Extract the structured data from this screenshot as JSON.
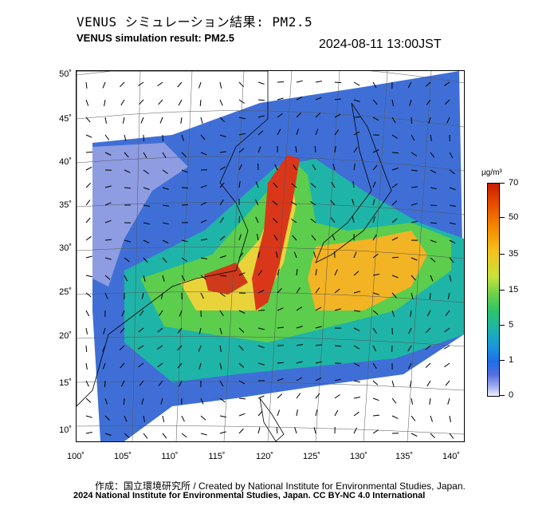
{
  "header": {
    "title_jp": "VENUS シミュレーション結果: PM2.5",
    "title_en": "VENUS simulation result: PM2.5",
    "timestamp": "2024-08-11 13:00JST"
  },
  "map": {
    "lat_labels": [
      "50˚",
      "45˚",
      "40˚",
      "35˚",
      "30˚",
      "25˚",
      "20˚",
      "15˚",
      "10˚"
    ],
    "lon_labels": [
      "100˚",
      "105˚",
      "110˚",
      "115˚",
      "120˚",
      "125˚",
      "130˚",
      "135˚",
      "140˚"
    ],
    "lat_values": [
      50,
      45,
      40,
      35,
      30,
      25,
      20,
      15,
      10
    ],
    "lon_values": [
      100,
      105,
      110,
      115,
      120,
      125,
      130,
      135,
      140
    ],
    "land_color": "#ffffff",
    "background_color": "#4169c8"
  },
  "colorbar": {
    "unit": "µg/m³",
    "labels": [
      "70",
      "50",
      "35",
      "15",
      "5",
      "1",
      "0"
    ],
    "colors": [
      "#c81e00",
      "#f59000",
      "#f4c21e",
      "#6fd14a",
      "#1fb4a8",
      "#1e6ee6",
      "#f2f2ff"
    ]
  },
  "footer": {
    "credit": "作成：国立環境研究所 / Created by National Institute for Environmental Studies, Japan.",
    "copyright": "2024 National Institute for Environmental Studies, Japan. CC BY-NC 4.0 International"
  }
}
